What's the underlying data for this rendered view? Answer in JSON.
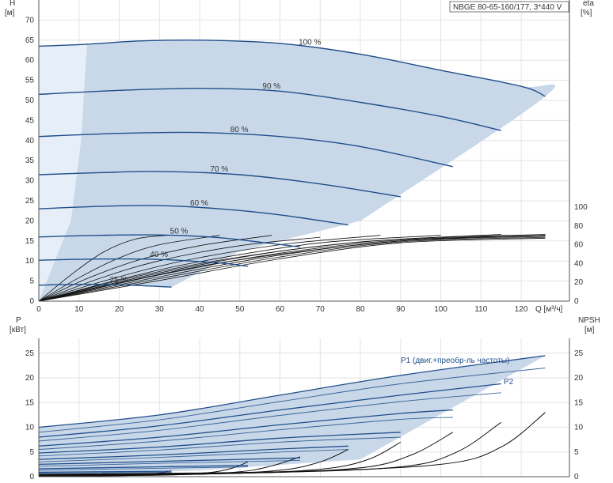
{
  "chart_data": [
    {
      "type": "line",
      "title": "NBGE 80-65-160/177, 3*440 V",
      "ylabel_left": [
        "H",
        "[м]"
      ],
      "ylabel_right": [
        "eta",
        "[%]"
      ],
      "xlabel": "Q [м³/ч]",
      "xlim": [
        0,
        132
      ],
      "x_ticks": [
        0,
        10,
        20,
        30,
        40,
        50,
        60,
        70,
        80,
        90,
        100,
        110,
        120
      ],
      "ylim": [
        0,
        75
      ],
      "y_ticks": [
        0,
        5,
        10,
        15,
        20,
        25,
        30,
        35,
        40,
        45,
        50,
        55,
        60,
        65,
        70
      ],
      "y2_ticks": [
        0,
        20,
        40,
        60,
        80,
        100
      ],
      "grid": true,
      "colors": {
        "curve": "#1f4e8c",
        "region": "#c9d8e8",
        "region_low": "#e6eef7",
        "eta": "#111111"
      },
      "operating_region": [
        [
          0,
          63.5
        ],
        [
          12,
          64
        ],
        [
          25,
          64.8
        ],
        [
          40,
          65
        ],
        [
          60,
          64.2
        ],
        [
          80,
          61.5
        ],
        [
          100,
          57.5
        ],
        [
          120,
          53.5
        ],
        [
          126,
          51
        ],
        [
          80,
          20
        ],
        [
          50,
          12.5
        ],
        [
          33,
          3.5
        ],
        [
          20,
          4.3
        ],
        [
          0,
          0
        ]
      ],
      "speed_curves": [
        {
          "label": "100 %",
          "q_max": 126,
          "points": [
            [
              0,
              63.5
            ],
            [
              12,
              64
            ],
            [
              25,
              64.8
            ],
            [
              40,
              65
            ],
            [
              60,
              64.2
            ],
            [
              80,
              61.5
            ],
            [
              100,
              57.5
            ],
            [
              120,
              53.5
            ],
            [
              126,
              51
            ]
          ]
        },
        {
          "label": "90 %",
          "q_max": 115,
          "points": [
            [
              0,
              51.5
            ],
            [
              20,
              52.5
            ],
            [
              40,
              53
            ],
            [
              60,
              52.3
            ],
            [
              80,
              49.5
            ],
            [
              100,
              46
            ],
            [
              115,
              42.5
            ]
          ]
        },
        {
          "label": "80 %",
          "q_max": 103,
          "points": [
            [
              0,
              41
            ],
            [
              20,
              41.8
            ],
            [
              40,
              42
            ],
            [
              60,
              41
            ],
            [
              80,
              38.5
            ],
            [
              103,
              33.5
            ]
          ]
        },
        {
          "label": "70 %",
          "q_max": 90,
          "points": [
            [
              0,
              31.5
            ],
            [
              15,
              32
            ],
            [
              30,
              32.3
            ],
            [
              50,
              31.5
            ],
            [
              70,
              29.2
            ],
            [
              90,
              26
            ]
          ]
        },
        {
          "label": "60 %",
          "q_max": 77,
          "points": [
            [
              0,
              23
            ],
            [
              15,
              23.6
            ],
            [
              30,
              23.8
            ],
            [
              45,
              23
            ],
            [
              60,
              21.5
            ],
            [
              77,
              19
            ]
          ]
        },
        {
          "label": "50 %",
          "q_max": 65,
          "points": [
            [
              0,
              16
            ],
            [
              15,
              16.4
            ],
            [
              30,
              16.5
            ],
            [
              45,
              15.8
            ],
            [
              65,
              13.5
            ]
          ]
        },
        {
          "label": "40 %",
          "q_max": 52,
          "points": [
            [
              0,
              10.2
            ],
            [
              15,
              10.5
            ],
            [
              30,
              10.4
            ],
            [
              45,
              9.5
            ],
            [
              52,
              8.7
            ]
          ]
        },
        {
          "label": "25 %",
          "q_max": 33,
          "points": [
            [
              0,
              4
            ],
            [
              10,
              4.2
            ],
            [
              20,
              4.1
            ],
            [
              33,
              3.5
            ]
          ]
        }
      ],
      "eta_curves": [
        {
          "q_max": 32,
          "points": [
            [
              0,
              0
            ],
            [
              8,
              28
            ],
            [
              16,
              52
            ],
            [
              24,
              66
            ],
            [
              32,
              70
            ]
          ]
        },
        {
          "q_max": 45,
          "points": [
            [
              0,
              0
            ],
            [
              10,
              25
            ],
            [
              20,
              46
            ],
            [
              30,
              60
            ],
            [
              45,
              70
            ]
          ]
        },
        {
          "q_max": 58,
          "points": [
            [
              0,
              0
            ],
            [
              12,
              24
            ],
            [
              25,
              44
            ],
            [
              40,
              59
            ],
            [
              58,
              70
            ]
          ]
        },
        {
          "q_max": 70,
          "points": [
            [
              0,
              0
            ],
            [
              15,
              24
            ],
            [
              30,
              43
            ],
            [
              50,
              59
            ],
            [
              70,
              68
            ]
          ]
        },
        {
          "q_max": 85,
          "points": [
            [
              0,
              0
            ],
            [
              15,
              20
            ],
            [
              35,
              42
            ],
            [
              60,
              60
            ],
            [
              85,
              70
            ]
          ]
        },
        {
          "q_max": 100,
          "points": [
            [
              0,
              0
            ],
            [
              20,
              23
            ],
            [
              40,
              42
            ],
            [
              70,
              62
            ],
            [
              100,
              70
            ]
          ]
        },
        {
          "q_max": 115,
          "points": [
            [
              0,
              0
            ],
            [
              25,
              27
            ],
            [
              50,
              47
            ],
            [
              80,
              63
            ],
            [
              115,
              71
            ]
          ]
        },
        {
          "q_max": 126,
          "points": [
            [
              0,
              0
            ],
            [
              25,
              24
            ],
            [
              50,
              44
            ],
            [
              90,
              64
            ],
            [
              126,
              70
            ]
          ]
        },
        {
          "q_max": 126,
          "points": [
            [
              0,
              0
            ],
            [
              30,
              30
            ],
            [
              60,
              53
            ],
            [
              90,
              66
            ],
            [
              126,
              71
            ]
          ]
        },
        {
          "q_max": 126,
          "points": [
            [
              0,
              0
            ],
            [
              30,
              28
            ],
            [
              60,
              51
            ],
            [
              90,
              65
            ],
            [
              126,
              70
            ]
          ]
        },
        {
          "q_max": 126,
          "points": [
            [
              0,
              0
            ],
            [
              30,
              26
            ],
            [
              60,
              49
            ],
            [
              90,
              64
            ],
            [
              126,
              69
            ]
          ]
        },
        {
          "q_max": 126,
          "points": [
            [
              0,
              0
            ],
            [
              30,
              24
            ],
            [
              60,
              47
            ],
            [
              90,
              63
            ],
            [
              126,
              68
            ]
          ]
        },
        {
          "q_max": 126,
          "points": [
            [
              0,
              0
            ],
            [
              30,
              22
            ],
            [
              60,
              45
            ],
            [
              90,
              62
            ],
            [
              126,
              67
            ]
          ]
        }
      ],
      "annotation_positions": {
        "100 %": 67,
        "90 %": 58,
        "80 %": 50,
        "70 %": 45,
        "60 %": 40,
        "50 %": 35,
        "40 %": 30,
        "25 %": 20
      }
    },
    {
      "type": "line",
      "ylabel_left": [
        "P",
        "[кВт]"
      ],
      "ylabel_right": [
        "NPSH",
        "[м]"
      ],
      "xlim": [
        0,
        132
      ],
      "ylim": [
        0,
        28
      ],
      "y_ticks": [
        0,
        5,
        10,
        15,
        20,
        25
      ],
      "y2_ticks": [
        0,
        5,
        10,
        15,
        20,
        25
      ],
      "grid": true,
      "p1_label": "P1 (двиг.+преобр-ль частоты)",
      "p2_label": "P2",
      "power_region": [
        [
          0,
          10
        ],
        [
          30,
          12.5
        ],
        [
          60,
          16.5
        ],
        [
          90,
          20.5
        ],
        [
          126,
          24.5
        ],
        [
          80,
          3.5
        ],
        [
          40,
          1.3
        ],
        [
          0,
          0
        ]
      ],
      "p1_curves": [
        {
          "points": [
            [
              0,
              10
            ],
            [
              30,
              12.5
            ],
            [
              60,
              16.5
            ],
            [
              90,
              20.5
            ],
            [
              126,
              24.5
            ]
          ]
        },
        {
          "points": [
            [
              0,
              8
            ],
            [
              30,
              10.3
            ],
            [
              60,
              13.5
            ],
            [
              90,
              16.5
            ],
            [
              115,
              18.8
            ]
          ]
        },
        {
          "points": [
            [
              0,
              6.2
            ],
            [
              30,
              8
            ],
            [
              60,
              10.5
            ],
            [
              90,
              12.8
            ],
            [
              103,
              13.5
            ]
          ]
        },
        {
          "points": [
            [
              0,
              4.8
            ],
            [
              30,
              6
            ],
            [
              60,
              7.8
            ],
            [
              90,
              9
            ]
          ]
        },
        {
          "points": [
            [
              0,
              3.5
            ],
            [
              30,
              4.4
            ],
            [
              60,
              5.6
            ],
            [
              77,
              6.2
            ]
          ]
        },
        {
          "points": [
            [
              0,
              2.5
            ],
            [
              30,
              3.1
            ],
            [
              65,
              3.8
            ]
          ]
        },
        {
          "points": [
            [
              0,
              1.6
            ],
            [
              30,
              2
            ],
            [
              52,
              2.3
            ]
          ]
        },
        {
          "points": [
            [
              0,
              0.9
            ],
            [
              33,
              1.1
            ]
          ]
        }
      ],
      "p2_curves": [
        {
          "points": [
            [
              0,
              9
            ],
            [
              30,
              11.5
            ],
            [
              60,
              15.2
            ],
            [
              90,
              18.8
            ],
            [
              126,
              22
            ]
          ]
        },
        {
          "points": [
            [
              0,
              7.2
            ],
            [
              30,
              9.4
            ],
            [
              60,
              12.4
            ],
            [
              90,
              15.2
            ],
            [
              115,
              17
            ]
          ]
        },
        {
          "points": [
            [
              0,
              5.5
            ],
            [
              30,
              7.2
            ],
            [
              60,
              9.5
            ],
            [
              90,
              11.6
            ],
            [
              103,
              12
            ]
          ]
        },
        {
          "points": [
            [
              0,
              4.2
            ],
            [
              30,
              5.4
            ],
            [
              60,
              7
            ],
            [
              90,
              8
            ]
          ]
        },
        {
          "points": [
            [
              0,
              3
            ],
            [
              30,
              3.9
            ],
            [
              60,
              5
            ],
            [
              77,
              5.5
            ]
          ]
        },
        {
          "points": [
            [
              0,
              2.1
            ],
            [
              30,
              2.7
            ],
            [
              65,
              3.3
            ]
          ]
        },
        {
          "points": [
            [
              0,
              1.3
            ],
            [
              30,
              1.7
            ],
            [
              52,
              2
            ]
          ]
        },
        {
          "points": [
            [
              0,
              0.7
            ],
            [
              33,
              0.9
            ]
          ]
        }
      ],
      "npsh_curves": [
        {
          "points": [
            [
              0,
              0.5
            ],
            [
              60,
              1
            ],
            [
              100,
              2.5
            ],
            [
              115,
              6
            ],
            [
              126,
              13
            ]
          ]
        },
        {
          "points": [
            [
              0,
              0.4
            ],
            [
              55,
              0.8
            ],
            [
              90,
              2
            ],
            [
              104,
              5
            ],
            [
              115,
              11
            ]
          ]
        },
        {
          "points": [
            [
              0,
              0.4
            ],
            [
              50,
              0.7
            ],
            [
              80,
              1.8
            ],
            [
              93,
              4.5
            ],
            [
              103,
              9
            ]
          ]
        },
        {
          "points": [
            [
              0,
              0.3
            ],
            [
              45,
              0.6
            ],
            [
              70,
              1.5
            ],
            [
              82,
              3.5
            ],
            [
              90,
              7
            ]
          ]
        },
        {
          "points": [
            [
              0,
              0.3
            ],
            [
              40,
              0.5
            ],
            [
              60,
              1.3
            ],
            [
              70,
              3
            ],
            [
              77,
              5.5
            ]
          ]
        },
        {
          "points": [
            [
              0,
              0.2
            ],
            [
              35,
              0.4
            ],
            [
              50,
              1
            ],
            [
              58,
              2.2
            ],
            [
              65,
              4
            ]
          ]
        },
        {
          "points": [
            [
              0,
              0.2
            ],
            [
              30,
              0.3
            ],
            [
              42,
              0.8
            ],
            [
              48,
              1.7
            ],
            [
              52,
              3
            ]
          ]
        },
        {
          "points": [
            [
              0,
              0.1
            ],
            [
              20,
              0.2
            ],
            [
              28,
              0.5
            ],
            [
              33,
              1.2
            ]
          ]
        }
      ]
    }
  ]
}
